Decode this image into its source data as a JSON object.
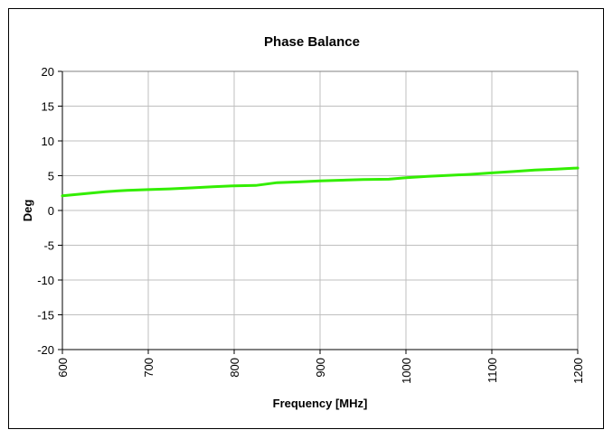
{
  "chart_data": {
    "type": "line",
    "title": "Phase Balance",
    "xlabel": "Frequency [MHz]",
    "ylabel": "Deg",
    "xlim": [
      600,
      1200
    ],
    "ylim": [
      -20,
      20
    ],
    "x_ticks": [
      600,
      700,
      800,
      900,
      1000,
      1100,
      1200
    ],
    "y_ticks": [
      -20,
      -15,
      -10,
      -5,
      0,
      5,
      10,
      15,
      20
    ],
    "x_tick_labels": [
      "600",
      "700",
      "800",
      "900",
      "1000",
      "1100",
      "1200"
    ],
    "y_tick_labels": [
      "-20",
      "-15",
      "-10",
      "-5",
      "0",
      "5",
      "10",
      "15",
      "20"
    ],
    "grid": true,
    "legend": "none",
    "series": [
      {
        "color": "#33ee00",
        "x": [
          600,
          625,
          650,
          675,
          700,
          725,
          750,
          775,
          800,
          825,
          850,
          875,
          900,
          925,
          950,
          980,
          1000,
          1025,
          1050,
          1075,
          1100,
          1125,
          1150,
          1175,
          1200
        ],
        "y": [
          2.1,
          2.4,
          2.7,
          2.9,
          3.0,
          3.1,
          3.25,
          3.4,
          3.55,
          3.6,
          4.0,
          4.1,
          4.25,
          4.35,
          4.45,
          4.5,
          4.7,
          4.9,
          5.05,
          5.2,
          5.4,
          5.6,
          5.8,
          5.95,
          6.1
        ]
      }
    ]
  }
}
